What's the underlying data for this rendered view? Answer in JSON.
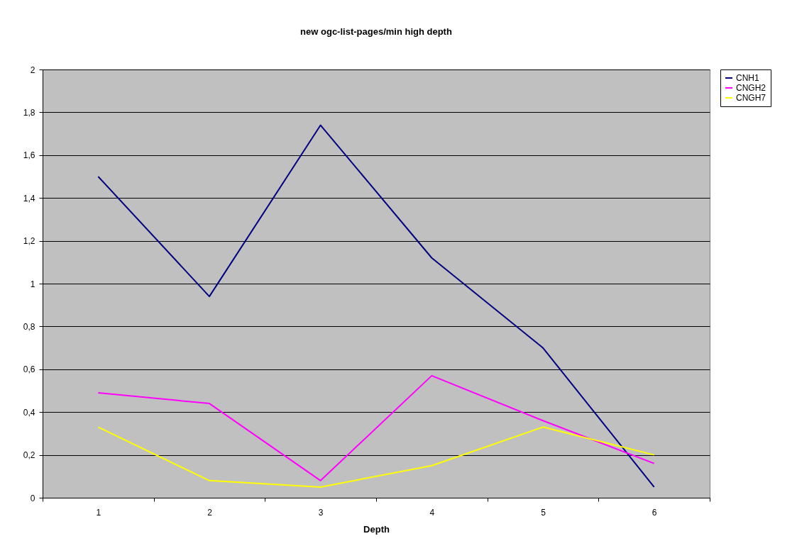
{
  "chart_data": {
    "type": "line",
    "title": "new ogc-list-pages/min high depth",
    "xlabel": "Depth",
    "categories": [
      "1",
      "2",
      "3",
      "4",
      "5",
      "6"
    ],
    "series": [
      {
        "name": "CNH1",
        "color": "#000080",
        "values": [
          1.5,
          0.94,
          1.74,
          1.12,
          0.7,
          0.05
        ]
      },
      {
        "name": "CNGH2",
        "color": "#ff00ff",
        "values": [
          0.49,
          0.44,
          0.08,
          0.57,
          0.36,
          0.16
        ]
      },
      {
        "name": "CNGH7",
        "color": "#ffff00",
        "values": [
          0.33,
          0.08,
          0.05,
          0.15,
          0.33,
          0.2
        ]
      }
    ],
    "ylim": [
      0,
      2
    ],
    "yticks": [
      0,
      {
        "value": 0.2,
        "label": "0,2"
      },
      {
        "value": 0.4,
        "label": "0,4"
      },
      {
        "value": 0.6,
        "label": "0,6"
      },
      {
        "value": 0.8,
        "label": "0,8"
      },
      1,
      {
        "value": 1.2,
        "label": "1,2"
      },
      {
        "value": 1.4,
        "label": "1,4"
      },
      {
        "value": 1.6,
        "label": "1,6"
      },
      {
        "value": 1.8,
        "label": "1,8"
      },
      2
    ],
    "grid": "y",
    "legend": "right",
    "marker": "none",
    "line_style": "solid"
  }
}
